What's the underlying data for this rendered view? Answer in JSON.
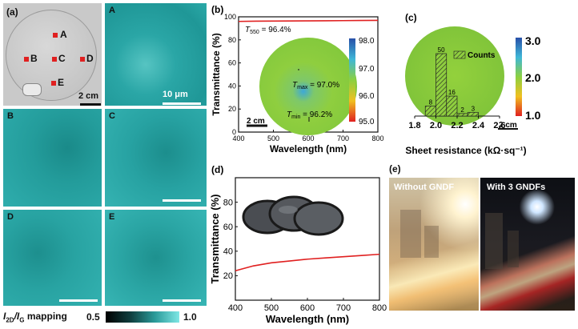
{
  "panel_a": {
    "label": "(a)",
    "wafer_points": [
      "A",
      "B",
      "C",
      "D",
      "E"
    ],
    "wafer_scale": "2 cm",
    "map_scale": "10 μm",
    "tiles": [
      "A",
      "B",
      "C",
      "D",
      "E"
    ],
    "colorbar": {
      "label_main": "I",
      "label_sub1": "2D",
      "label_sep": "/I",
      "label_sub2": "G",
      "label_tail": " mapping",
      "min": "0.5",
      "max": "1.0"
    }
  },
  "panel_b": {
    "label": "(b)",
    "annotation_t550": "T",
    "annotation_t550_sub": "550",
    "annotation_t550_value": " = 96.4%",
    "tmax": "T",
    "tmax_sub": "max",
    "tmax_value": " = 97.0%",
    "tmin": "T",
    "tmin_sub": "min",
    "tmin_value": " = 96.2%",
    "scale": "2 cm",
    "colorbar_ticks": [
      "98.0",
      "97.0",
      "96.0",
      "95.0"
    ]
  },
  "panel_c": {
    "label": "(c)",
    "legend": "Counts",
    "scale": "2 cm",
    "colorbar_ticks": [
      "3.0",
      "2.0",
      "1.0"
    ]
  },
  "panel_d": {
    "label": "(d)"
  },
  "panel_e": {
    "label": "(e)",
    "left_caption": "Without GNDF",
    "right_caption": "With 3 GNDFs"
  },
  "chart_data": [
    {
      "id": "b",
      "type": "line",
      "xlabel": "Wavelength (nm)",
      "ylabel": "Transmittance (%)",
      "xlim": [
        400,
        800
      ],
      "ylim": [
        0,
        100
      ],
      "xticks": [
        400,
        500,
        600,
        700,
        800
      ],
      "yticks": [
        0,
        20,
        40,
        60,
        80,
        100
      ],
      "series": [
        {
          "color": "#e02020",
          "x": [
            400,
            450,
            500,
            550,
            600,
            650,
            700,
            750,
            800
          ],
          "y": [
            96.0,
            96.2,
            96.3,
            96.4,
            96.5,
            96.6,
            96.7,
            96.8,
            96.9
          ]
        }
      ]
    },
    {
      "id": "c",
      "type": "bar",
      "xlabel": "Sheet resistance (kΩ·sq⁻¹)",
      "xlim": [
        1.8,
        2.6
      ],
      "xticks": [
        1.8,
        2.0,
        2.2,
        2.4,
        2.6
      ],
      "bins": [
        [
          1.9,
          2.0
        ],
        [
          2.0,
          2.1
        ],
        [
          2.1,
          2.2
        ],
        [
          2.2,
          2.3
        ],
        [
          2.3,
          2.4
        ]
      ],
      "values": [
        8,
        50,
        16,
        2,
        3
      ]
    },
    {
      "id": "d",
      "type": "line",
      "xlabel": "Wavelength (nm)",
      "ylabel": "Transmittance (%)",
      "xlim": [
        400,
        800
      ],
      "ylim": [
        0,
        100
      ],
      "xticks": [
        400,
        500,
        600,
        700,
        800
      ],
      "yticks": [
        20,
        40,
        60,
        80
      ],
      "series": [
        {
          "color": "#e02020",
          "x": [
            400,
            450,
            500,
            550,
            600,
            650,
            700,
            750,
            800
          ],
          "y": [
            24,
            28,
            30.5,
            32,
            33.5,
            34.5,
            35.5,
            36.5,
            37.5
          ]
        }
      ]
    }
  ]
}
